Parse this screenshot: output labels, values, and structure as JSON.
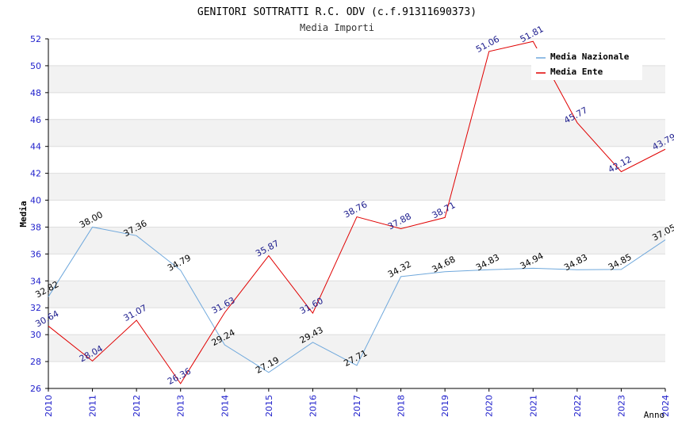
{
  "chart_data": {
    "type": "line",
    "title": "GENITORI SOTTRATTI R.C. ODV (c.f.91311690373)",
    "subtitle": "Media Importi",
    "xlabel": "Anno",
    "ylabel": "Media",
    "ylim": [
      26,
      52
    ],
    "yticks": [
      26,
      28,
      30,
      32,
      34,
      36,
      38,
      40,
      42,
      44,
      46,
      48,
      50,
      52
    ],
    "categories": [
      "2010",
      "2011",
      "2012",
      "2013",
      "2014",
      "2015",
      "2016",
      "2017",
      "2018",
      "2019",
      "2020",
      "2021",
      "2022",
      "2023",
      "2024"
    ],
    "grid": "horizontal bands",
    "legend_position": "top-right",
    "series": [
      {
        "name": "Media Nazionale",
        "color": "#6fa8dc",
        "label_color": "#000000",
        "values": [
          32.82,
          38.0,
          37.36,
          34.79,
          29.24,
          27.19,
          29.43,
          27.71,
          34.32,
          34.68,
          34.83,
          34.94,
          34.83,
          34.85,
          37.05
        ],
        "labels": [
          "32.82",
          "38.00",
          "37.36",
          "34.79",
          "29.24",
          "27.19",
          "29.43",
          "27.71",
          "34.32",
          "34.68",
          "34.83",
          "34.94",
          "34.83",
          "34.85",
          "37.05"
        ]
      },
      {
        "name": "Media Ente",
        "color": "#e00000",
        "label_color": "#1a1a8c",
        "values": [
          30.64,
          28.04,
          31.07,
          26.36,
          31.63,
          35.87,
          31.6,
          38.76,
          37.88,
          38.71,
          51.06,
          51.81,
          45.77,
          42.12,
          43.79
        ],
        "labels": [
          "30.64",
          "28.04",
          "31.07",
          "26.36",
          "31.63",
          "35.87",
          "31.60",
          "38.76",
          "37.88",
          "38.71",
          "51.06",
          "51.81",
          "45.77",
          "42.12",
          "43.79"
        ]
      }
    ]
  }
}
